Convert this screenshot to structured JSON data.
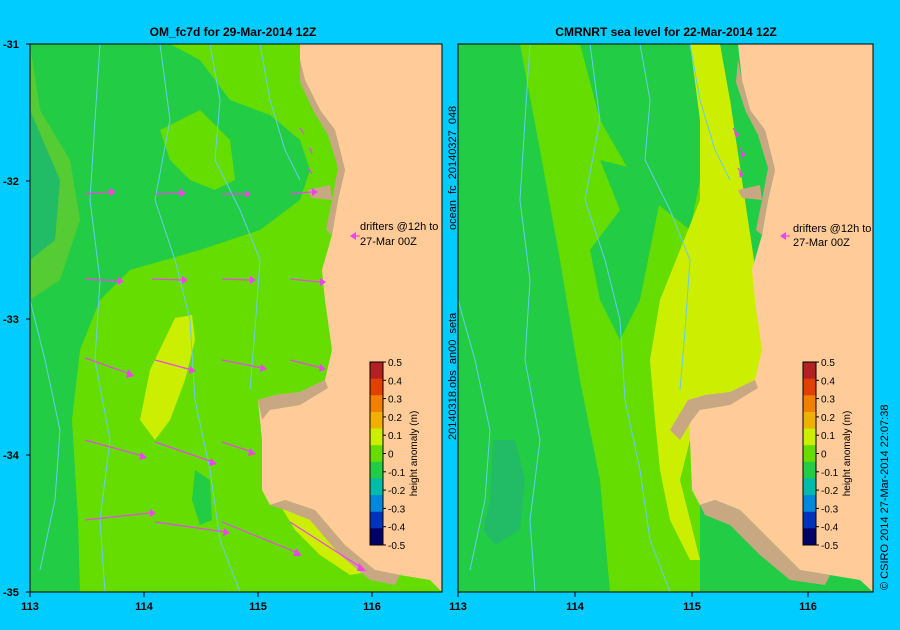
{
  "left_panel": {
    "title": "OM_fc7d for 29-Mar-2014 12Z",
    "annotation_line1": "drifters @12h to",
    "annotation_line2": "27-Mar 00Z"
  },
  "right_panel": {
    "title": "CMRNRT sea level  for 22-Mar-2014 12Z",
    "annotation_line1": "drifters @12h to",
    "annotation_line2": "27-Mar 00Z"
  },
  "axes": {
    "lat_ticks": [
      "-31",
      "-32",
      "-33",
      "-34",
      "-35"
    ],
    "lon_ticks_left": [
      "113",
      "114",
      "115",
      "116"
    ],
    "lon_ticks_right": [
      "113",
      "114",
      "115",
      "116"
    ]
  },
  "side_text": {
    "vertical_label_top": "ocean_fc_20140327_048",
    "vertical_label_bottom": "20140318.obs_an00_seta",
    "copyright": "© CSIRO 2014   27-Mar-2014 22:07:38"
  },
  "colorbar": {
    "label": "height anomaly (m)",
    "ticks": [
      "0.5",
      "0.4",
      "0.3",
      "0.2",
      "0.1",
      "0",
      "-0.1",
      "-0.2",
      "-0.3",
      "-0.4",
      "-0.5"
    ],
    "colors": [
      "#b22222",
      "#e04000",
      "#f08000",
      "#f0b000",
      "#ccee00",
      "#66dd00",
      "#22cc44",
      "#00bbaa",
      "#0088dd",
      "#0033bb",
      "#000066"
    ]
  },
  "colors": {
    "background": "#00ccff",
    "land": "#ffcc99",
    "shelf": "#c8a882",
    "arrow": "#ee44ee",
    "bathymetry": "#66ccee"
  }
}
